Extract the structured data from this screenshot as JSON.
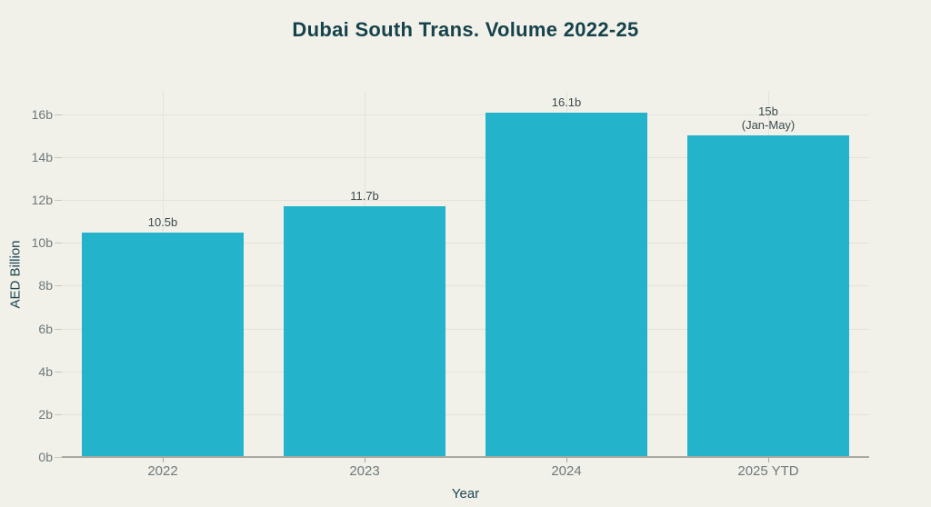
{
  "chart_data": {
    "type": "bar",
    "title": "Dubai South Trans. Volume 2022-25",
    "xlabel": "Year",
    "ylabel": "AED Billion",
    "categories": [
      "2022",
      "2023",
      "2024",
      "2025 YTD"
    ],
    "values": [
      10.5,
      11.7,
      16.1,
      15
    ],
    "bar_labels": [
      [
        "10.5b"
      ],
      [
        "11.7b"
      ],
      [
        "16.1b"
      ],
      [
        "15b",
        "(Jan-May)"
      ]
    ],
    "yticks": [
      0,
      2,
      4,
      6,
      8,
      10,
      12,
      14,
      16
    ],
    "ytick_labels": [
      "0b",
      "2b",
      "4b",
      "6b",
      "8b",
      "10b",
      "12b",
      "14b",
      "16b"
    ],
    "ylim": [
      0,
      17.1
    ],
    "grid": true,
    "legend": "none"
  },
  "colors": {
    "background": "#f1f1e9",
    "bar": "#23b4cb",
    "title": "#16424b",
    "axis_title": "#1d4650",
    "tick_label": "#6e797c",
    "value_label": "#3c4b4f",
    "gridline": "#e3e3da",
    "tick_mark": "#c9c9c0",
    "axis_line": "#a9a9a1"
  }
}
